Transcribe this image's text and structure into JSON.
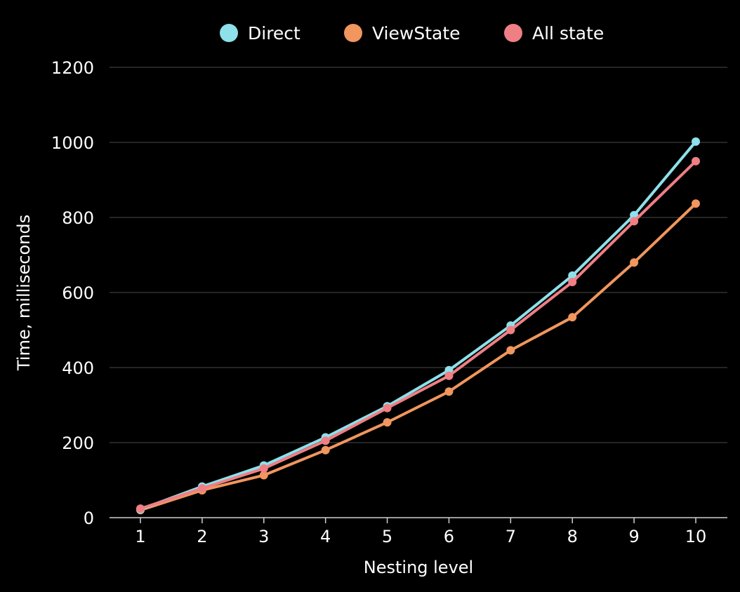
{
  "chart_data": {
    "type": "line",
    "xlabel": "Nesting level",
    "ylabel": "Time, milliseconds",
    "x": [
      1,
      2,
      3,
      4,
      5,
      6,
      7,
      8,
      9,
      10
    ],
    "x_tick_labels": [
      "1",
      "2",
      "3",
      "4",
      "5",
      "6",
      "7",
      "8",
      "9",
      "10"
    ],
    "ylim": [
      0,
      1200
    ],
    "y_ticks": [
      0,
      200,
      400,
      600,
      800,
      1000,
      1200
    ],
    "y_tick_labels": [
      "0",
      "200",
      "400",
      "600",
      "800",
      "1000",
      "1200"
    ],
    "grid": true,
    "legend_position": "top-center",
    "series": [
      {
        "name": "Direct",
        "color": "#8ee0ea",
        "values": [
          22,
          83,
          139,
          214,
          297,
          393,
          512,
          645,
          806,
          1002
        ]
      },
      {
        "name": "ViewState",
        "color": "#f0965e",
        "values": [
          20,
          73,
          113,
          180,
          254,
          336,
          446,
          534,
          680,
          837
        ]
      },
      {
        "name": "All state",
        "color": "#f07f85",
        "values": [
          24,
          78,
          131,
          205,
          292,
          378,
          500,
          628,
          790,
          950
        ]
      }
    ]
  }
}
